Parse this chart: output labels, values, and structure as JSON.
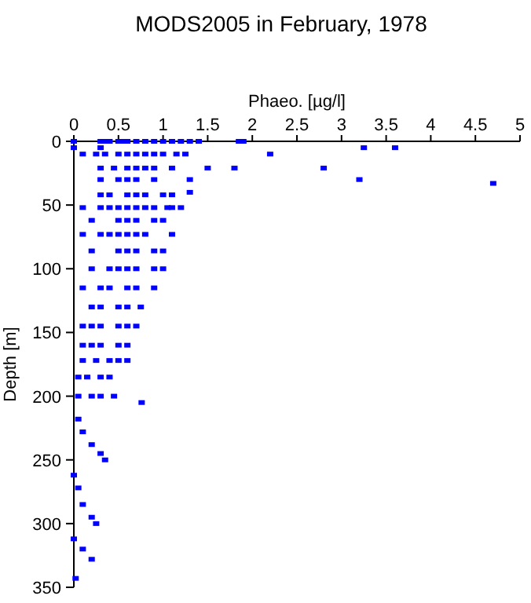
{
  "chart_data": {
    "type": "scatter",
    "title": "MODS2005 in February, 1978",
    "xlabel": "Phaeo. [µg/l]",
    "ylabel": "Depth [m]",
    "xlim": [
      0,
      5
    ],
    "xticks": [
      0,
      0.5,
      1,
      1.5,
      2,
      2.5,
      3,
      3.5,
      4,
      4.5,
      5
    ],
    "ylim": [
      350,
      0
    ],
    "yticks": [
      0,
      50,
      100,
      150,
      200,
      250,
      300,
      350
    ],
    "grid": false,
    "marker": "square",
    "series": [
      {
        "color": "#0000ff",
        "x": [
          0,
          0.3,
          0.35,
          0.4,
          0.5,
          0.55,
          0.6,
          0.7,
          0.8,
          0.9,
          1.0,
          1.1,
          1.2,
          1.3,
          1.4,
          1.85,
          1.9,
          0,
          0.3,
          3.25,
          3.6,
          0.1,
          0.25,
          0.35,
          0.5,
          0.6,
          0.7,
          0.8,
          0.9,
          1.0,
          1.15,
          1.25,
          2.2,
          0.3,
          0.45,
          0.6,
          0.7,
          0.8,
          0.9,
          1.1,
          1.5,
          1.8,
          2.8,
          0.3,
          0.5,
          0.6,
          0.7,
          0.9,
          1.3,
          3.2,
          4.7,
          0.3,
          0.4,
          0.6,
          0.7,
          0.8,
          1.0,
          1.1,
          1.3,
          0.1,
          0.3,
          0.4,
          0.5,
          0.6,
          0.7,
          0.8,
          0.9,
          1.05,
          1.1,
          1.2,
          0.2,
          0.5,
          0.6,
          0.7,
          0.9,
          1.0,
          0.1,
          0.3,
          0.4,
          0.5,
          0.6,
          0.7,
          0.8,
          1.1,
          0.2,
          0.5,
          0.6,
          0.7,
          0.9,
          1.0,
          0.2,
          0.4,
          0.5,
          0.6,
          0.7,
          0.9,
          1.0,
          0.1,
          0.3,
          0.4,
          0.6,
          0.7,
          0.9,
          0.2,
          0.3,
          0.5,
          0.6,
          0.75,
          0.1,
          0.2,
          0.3,
          0.5,
          0.6,
          0.7,
          0.1,
          0.2,
          0.3,
          0.5,
          0.6,
          0.1,
          0.25,
          0.4,
          0.5,
          0.6,
          0.05,
          0.15,
          0.3,
          0.4,
          0.05,
          0.2,
          0.3,
          0.45,
          0.76,
          0.05,
          0.1,
          0.2,
          0.3,
          0.35,
          0,
          0.05,
          0.1,
          0.2,
          0.25,
          0,
          0.1,
          0.2,
          0.02
        ],
        "values": [
          0,
          0,
          0,
          0,
          0,
          0,
          0,
          0,
          0,
          0,
          0,
          0,
          0,
          0,
          0,
          0,
          0,
          5,
          5,
          5,
          5,
          10,
          10,
          10,
          10,
          10,
          10,
          10,
          10,
          10,
          10,
          10,
          10,
          21,
          21,
          21,
          21,
          21,
          21,
          21,
          21,
          21,
          21,
          30,
          30,
          30,
          30,
          30,
          30,
          30,
          33,
          42,
          42,
          42,
          42,
          42,
          42,
          42,
          40,
          52,
          52,
          52,
          52,
          52,
          52,
          52,
          52,
          52,
          52,
          52,
          62,
          62,
          62,
          62,
          62,
          62,
          73,
          73,
          73,
          73,
          73,
          73,
          73,
          73,
          86,
          86,
          86,
          86,
          86,
          86,
          100,
          100,
          100,
          100,
          100,
          100,
          100,
          115,
          115,
          115,
          115,
          115,
          115,
          130,
          130,
          130,
          130,
          130,
          145,
          145,
          145,
          145,
          145,
          145,
          160,
          160,
          160,
          160,
          160,
          172,
          172,
          172,
          172,
          172,
          185,
          185,
          185,
          185,
          200,
          200,
          200,
          200,
          205,
          218,
          228,
          238,
          245,
          250,
          262,
          272,
          285,
          295,
          300,
          312,
          320,
          328,
          343
        ]
      }
    ]
  }
}
